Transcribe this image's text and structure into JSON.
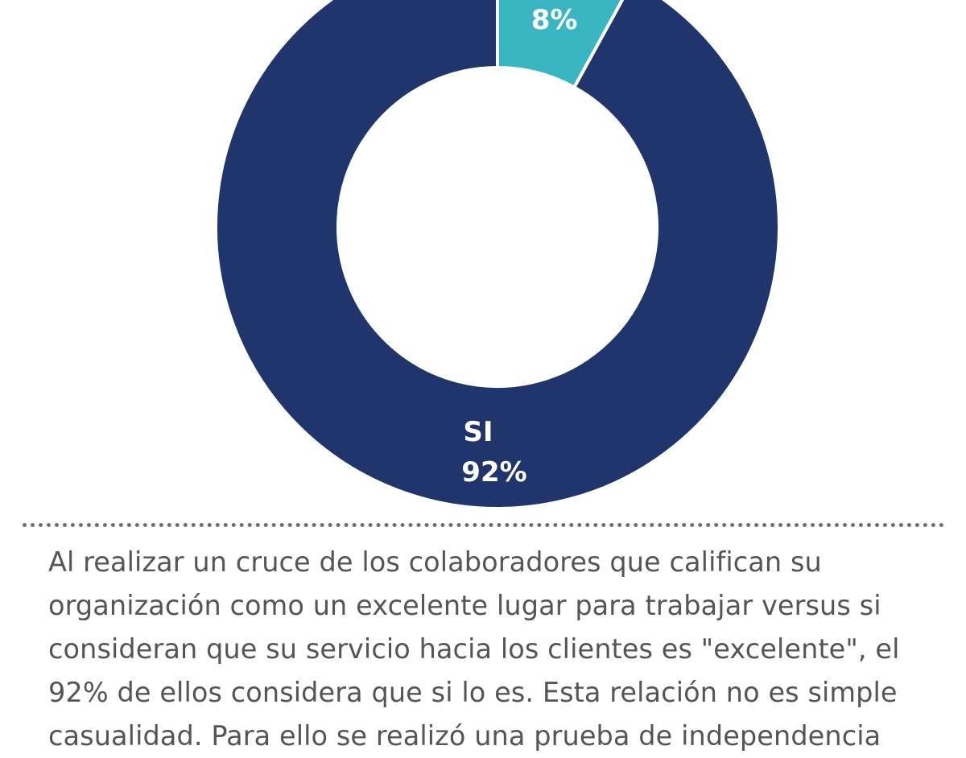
{
  "chart_data": {
    "type": "pie",
    "donut": true,
    "slices": [
      {
        "label": "",
        "value": 8,
        "value_label": "8%",
        "color": "#39b6c1"
      },
      {
        "label": "SI",
        "value": 92,
        "value_label": "92%",
        "color": "#1f356b"
      }
    ]
  },
  "article": {
    "paragraph": "Al realizar un cruce de los colaboradores que califican su organización como un excelente lugar para trabajar versus si consideran que su servicio hacia los clientes es \"excelente\", el 92% de ellos considera que si lo es. Esta relación no es simple casualidad. Para ello se realizó una prueba de independencia"
  }
}
